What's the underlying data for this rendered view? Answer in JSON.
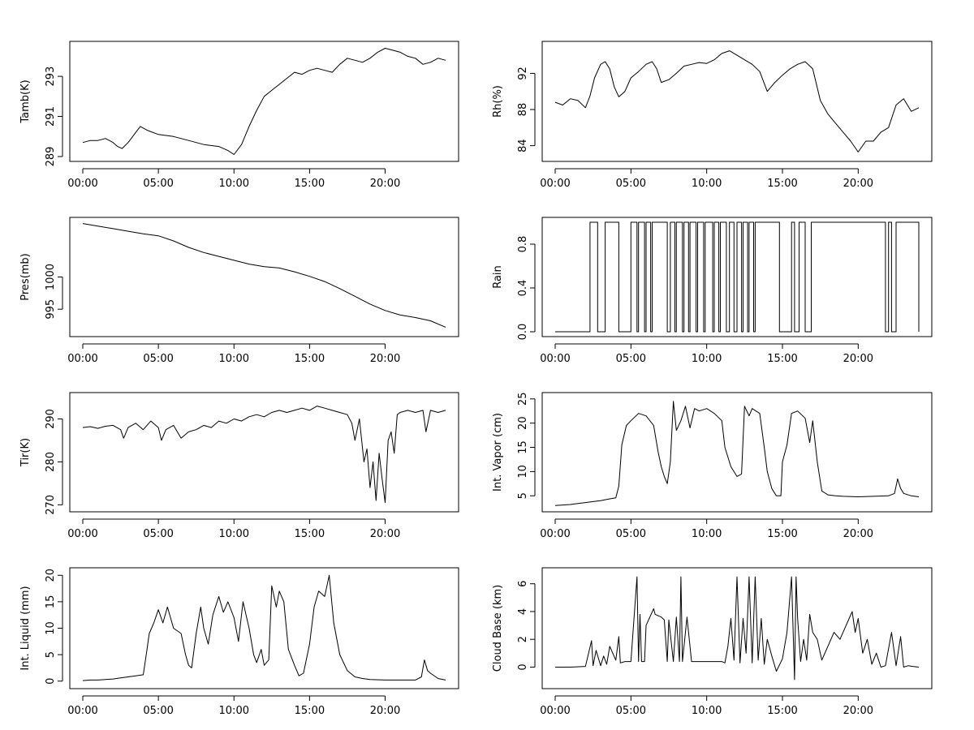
{
  "chart_data": [
    {
      "type": "line",
      "ylabel": "Tamb(K)",
      "xticks": [
        "00:00",
        "05:00",
        "10:00",
        "15:00",
        "20:00"
      ],
      "xlim": [
        0,
        24
      ],
      "ylim": [
        289,
        294.5
      ],
      "yticks": [
        289,
        291,
        293
      ],
      "x": [
        0,
        0.5,
        1,
        1.5,
        2,
        2.3,
        2.6,
        3,
        3.5,
        3.8,
        4.3,
        5,
        6,
        7,
        8,
        9,
        9.6,
        10,
        10.5,
        11,
        11.5,
        12,
        12.5,
        13,
        13.5,
        14,
        14.5,
        15,
        15.5,
        16,
        16.5,
        17,
        17.5,
        18,
        18.5,
        19,
        19.5,
        20,
        20.5,
        21,
        21.5,
        22,
        22.5,
        23,
        23.5,
        24
      ],
      "y": [
        289.7,
        289.8,
        289.8,
        289.9,
        289.7,
        289.5,
        289.4,
        289.7,
        290.2,
        290.5,
        290.3,
        290.1,
        290.0,
        289.8,
        289.6,
        289.5,
        289.3,
        289.1,
        289.6,
        290.5,
        291.3,
        292.0,
        292.3,
        292.6,
        292.9,
        293.2,
        293.1,
        293.3,
        293.4,
        293.3,
        293.2,
        293.6,
        293.9,
        293.8,
        293.7,
        293.9,
        294.2,
        294.4,
        294.3,
        294.2,
        294.0,
        293.9,
        293.6,
        293.7,
        293.9,
        293.8
      ]
    },
    {
      "type": "line",
      "ylabel": "Rh(%)",
      "xticks": [
        "00:00",
        "05:00",
        "10:00",
        "15:00",
        "20:00"
      ],
      "xlim": [
        0,
        24
      ],
      "ylim": [
        82.8,
        95
      ],
      "yticks": [
        84,
        88,
        92
      ],
      "x": [
        0,
        0.5,
        1,
        1.5,
        2,
        2.3,
        2.6,
        3,
        3.3,
        3.6,
        3.9,
        4.2,
        4.6,
        5,
        5.5,
        6,
        6.4,
        6.7,
        7,
        7.5,
        8,
        8.5,
        9,
        9.5,
        10,
        10.5,
        11,
        11.5,
        12,
        12.5,
        13,
        13.5,
        14,
        14.5,
        15,
        15.5,
        16,
        16.5,
        17,
        17.5,
        18,
        18.5,
        19,
        19.5,
        20,
        20.5,
        21,
        21.5,
        22,
        22.5,
        23,
        23.5,
        24
      ],
      "y": [
        88.8,
        88.5,
        89.2,
        89.0,
        88.2,
        89.5,
        91.5,
        93.0,
        93.3,
        92.5,
        90.5,
        89.4,
        90.0,
        91.5,
        92.2,
        93.0,
        93.3,
        92.5,
        91.0,
        91.3,
        92.0,
        92.8,
        93.0,
        93.2,
        93.1,
        93.5,
        94.2,
        94.5,
        94.0,
        93.5,
        93.0,
        92.2,
        90.0,
        91.0,
        91.8,
        92.5,
        93.0,
        93.3,
        92.5,
        89.0,
        87.5,
        86.5,
        85.5,
        84.5,
        83.3,
        84.5,
        84.5,
        85.5,
        86.0,
        88.5,
        89.2,
        87.8,
        88.2
      ]
    },
    {
      "type": "line",
      "ylabel": "Pres(mb)",
      "xticks": [
        "00:00",
        "05:00",
        "10:00",
        "15:00",
        "20:00"
      ],
      "xlim": [
        0,
        24
      ],
      "ylim": [
        991.5,
        1008.5
      ],
      "yticks": [
        995,
        1000
      ],
      "x": [
        0,
        1,
        2,
        3,
        4,
        5,
        6,
        7,
        8,
        9,
        10,
        11,
        12,
        13,
        14,
        15,
        16,
        17,
        18,
        19,
        20,
        21,
        22,
        23,
        24
      ],
      "y": [
        1008.3,
        1007.9,
        1007.5,
        1007.1,
        1006.7,
        1006.4,
        1005.6,
        1004.6,
        1003.8,
        1003.2,
        1002.6,
        1002.0,
        1001.6,
        1001.4,
        1000.8,
        1000.1,
        999.3,
        998.2,
        997.0,
        995.8,
        994.8,
        994.1,
        993.7,
        993.2,
        992.2
      ]
    },
    {
      "type": "line",
      "ylabel": "Rain",
      "xticks": [
        "00:00",
        "05:00",
        "10:00",
        "15:00",
        "20:00"
      ],
      "xlim": [
        0,
        24
      ],
      "ylim": [
        0,
        1
      ],
      "yticks": [
        "0.0",
        "0.4",
        "0.8"
      ],
      "step": true,
      "x": [
        0,
        2.3,
        2.8,
        3.3,
        4.2,
        5.0,
        5.4,
        5.5,
        5.9,
        6.0,
        6.3,
        6.4,
        7.4,
        7.6,
        7.9,
        8.0,
        8.4,
        8.5,
        8.8,
        8.9,
        9.3,
        9.4,
        9.8,
        9.9,
        10.4,
        10.5,
        10.8,
        10.9,
        11.3,
        11.5,
        11.8,
        12.0,
        12.3,
        12.4,
        12.7,
        12.8,
        13.1,
        13.2,
        14.8,
        15.6,
        15.8,
        16.1,
        16.5,
        16.9,
        21.8,
        22.0,
        22.2,
        22.5,
        24
      ],
      "y": [
        0,
        1,
        0,
        1,
        0,
        1,
        0,
        1,
        0,
        1,
        0,
        1,
        0,
        1,
        0,
        1,
        0,
        1,
        0,
        1,
        0,
        1,
        0,
        1,
        0,
        1,
        0,
        1,
        0,
        1,
        0,
        1,
        0,
        1,
        0,
        1,
        0,
        1,
        0,
        1,
        0,
        1,
        0,
        1,
        0,
        1,
        0,
        1,
        0
      ]
    },
    {
      "type": "line",
      "ylabel": "Tir(K)",
      "xticks": [
        "00:00",
        "05:00",
        "10:00",
        "15:00",
        "20:00"
      ],
      "xlim": [
        0,
        24
      ],
      "ylim": [
        269.5,
        295
      ],
      "yticks": [
        270,
        280,
        290
      ],
      "x": [
        0,
        0.5,
        1,
        1.5,
        2,
        2.5,
        2.7,
        3,
        3.5,
        4,
        4.5,
        5,
        5.2,
        5.5,
        6,
        6.5,
        7,
        7.5,
        8,
        8.5,
        9,
        9.5,
        10,
        10.5,
        11,
        11.5,
        12,
        12.5,
        13,
        13.5,
        14,
        14.5,
        15,
        15.5,
        16,
        16.5,
        17,
        17.5,
        17.8,
        18,
        18.3,
        18.6,
        18.8,
        19.0,
        19.2,
        19.4,
        19.6,
        19.8,
        20.0,
        20.2,
        20.4,
        20.6,
        20.8,
        21,
        21.5,
        22,
        22.5,
        22.7,
        23,
        23.5,
        24
      ],
      "y": [
        288.0,
        288.2,
        287.8,
        288.3,
        288.5,
        287.5,
        285.5,
        288.0,
        289.0,
        287.5,
        289.5,
        288.0,
        285.0,
        287.5,
        288.5,
        285.5,
        287.0,
        287.5,
        288.5,
        288.0,
        289.5,
        289.0,
        290.0,
        289.5,
        290.5,
        291.0,
        290.5,
        291.5,
        292.0,
        291.5,
        292.0,
        292.5,
        292.0,
        293.0,
        292.5,
        292.0,
        291.5,
        291.0,
        289.0,
        285.0,
        290.0,
        280.0,
        283.0,
        274.0,
        280.0,
        271.0,
        282.0,
        276.0,
        270.5,
        285.0,
        287.0,
        282.0,
        291.0,
        291.5,
        292.0,
        291.5,
        292.0,
        287.0,
        292.0,
        291.5,
        292.0
      ]
    },
    {
      "type": "line",
      "ylabel": "Int. Vapor (cm)",
      "xticks": [
        "00:00",
        "05:00",
        "10:00",
        "15:00",
        "20:00"
      ],
      "xlim": [
        0,
        24
      ],
      "ylim": [
        2.7,
        25.3
      ],
      "yticks": [
        5,
        10,
        15,
        20,
        25
      ],
      "x": [
        0,
        0.5,
        1,
        1.5,
        2,
        2.5,
        3,
        3.5,
        4,
        4.2,
        4.4,
        4.7,
        5,
        5.5,
        6,
        6.5,
        6.8,
        7.0,
        7.2,
        7.4,
        7.6,
        7.8,
        8.0,
        8.3,
        8.6,
        8.9,
        9.2,
        9.5,
        10,
        10.5,
        11,
        11.2,
        11.4,
        11.6,
        12,
        12.3,
        12.5,
        12.8,
        13,
        13.5,
        13.8,
        14,
        14.3,
        14.6,
        14.9,
        15.0,
        15.3,
        15.6,
        16,
        16.5,
        16.8,
        17.0,
        17.3,
        17.6,
        18,
        18.5,
        19,
        20,
        21,
        22,
        22.4,
        22.6,
        22.8,
        23,
        23.5,
        24
      ],
      "y": [
        3.0,
        3.1,
        3.2,
        3.4,
        3.6,
        3.8,
        4.0,
        4.3,
        4.6,
        7.0,
        15.5,
        19.5,
        20.5,
        22.0,
        21.5,
        19.5,
        14.0,
        11.0,
        9.0,
        7.5,
        12.0,
        24.5,
        18.5,
        20.5,
        23.5,
        19.0,
        23.0,
        22.5,
        23.0,
        22.0,
        20.5,
        15.0,
        13.0,
        11.0,
        9.0,
        9.5,
        23.5,
        21.5,
        23.0,
        22.0,
        15.0,
        10.0,
        6.5,
        5.0,
        5.0,
        12.0,
        15.5,
        22.0,
        22.5,
        21.0,
        16.0,
        20.5,
        12.0,
        6.0,
        5.2,
        5.0,
        4.9,
        4.8,
        4.9,
        5.0,
        5.5,
        8.5,
        6.5,
        5.5,
        5.0,
        4.8
      ]
    },
    {
      "type": "line",
      "ylabel": "Int. Liquid (mm)",
      "xticks": [
        "00:00",
        "05:00",
        "10:00",
        "15:00",
        "20:00"
      ],
      "xlim": [
        0,
        24
      ],
      "ylim": [
        -0.5,
        20.5
      ],
      "yticks": [
        0,
        5,
        10,
        15,
        20
      ],
      "x": [
        0,
        0.5,
        1,
        1.5,
        2,
        2.5,
        3,
        3.5,
        4,
        4.2,
        4.4,
        4.7,
        5,
        5.3,
        5.6,
        6,
        6.5,
        6.8,
        7,
        7.2,
        7.5,
        7.8,
        8.0,
        8.3,
        8.6,
        9,
        9.3,
        9.6,
        10,
        10.3,
        10.6,
        11,
        11.3,
        11.5,
        11.8,
        12,
        12.3,
        12.5,
        12.8,
        13,
        13.3,
        13.6,
        14,
        14.3,
        14.6,
        15,
        15.3,
        15.6,
        16,
        16.3,
        16.6,
        17,
        17.5,
        18,
        18.5,
        19,
        20,
        21,
        22,
        22.4,
        22.6,
        22.8,
        23,
        23.5,
        24
      ],
      "y": [
        0.1,
        0.2,
        0.2,
        0.3,
        0.4,
        0.6,
        0.8,
        1.0,
        1.2,
        5.0,
        9.0,
        11.0,
        13.5,
        11.0,
        14.0,
        10.0,
        9.0,
        5.0,
        3.0,
        2.5,
        9.0,
        14.0,
        10.0,
        7.0,
        12.5,
        16.0,
        13.0,
        15.0,
        12.0,
        7.5,
        15.0,
        10.0,
        5.0,
        3.5,
        6.0,
        3.0,
        4.0,
        18.0,
        14.0,
        17.0,
        15.0,
        6.0,
        3.0,
        1.0,
        1.5,
        7.0,
        14.0,
        17.0,
        16.0,
        20.0,
        11.0,
        5.0,
        2.0,
        0.8,
        0.5,
        0.3,
        0.2,
        0.2,
        0.2,
        0.8,
        4.0,
        2.0,
        1.5,
        0.5,
        0.2
      ]
    },
    {
      "type": "line",
      "ylabel": "Cloud Base (km)",
      "xticks": [
        "00:00",
        "05:00",
        "10:00",
        "15:00",
        "20:00"
      ],
      "xlim": [
        0,
        24
      ],
      "ylim": [
        -1.2,
        6.8
      ],
      "yticks": [
        0,
        2,
        4,
        6
      ],
      "x": [
        0,
        1,
        2,
        2.4,
        2.5,
        2.7,
        3,
        3.2,
        3.4,
        3.6,
        4.0,
        4.2,
        4.3,
        4.6,
        5.0,
        5.4,
        5.5,
        5.6,
        5.7,
        5.9,
        6,
        6.5,
        6.6,
        7,
        7.2,
        7.4,
        7.5,
        7.8,
        8,
        8.2,
        8.3,
        8.4,
        8.7,
        9,
        10,
        11,
        11.2,
        11.4,
        11.6,
        11.8,
        12,
        12.2,
        12.4,
        12.6,
        12.8,
        13,
        13.2,
        13.4,
        13.6,
        13.8,
        14,
        14.3,
        14.6,
        15,
        15.3,
        15.6,
        15.8,
        15.9,
        16,
        16.2,
        16.4,
        16.6,
        16.8,
        17,
        17.3,
        17.6,
        18,
        18.4,
        18.8,
        19.2,
        19.6,
        19.8,
        20,
        20.3,
        20.6,
        20.9,
        21.2,
        21.5,
        21.8,
        22.2,
        22.5,
        22.8,
        23,
        23.3,
        23.6,
        24
      ],
      "y": [
        0.0,
        0.0,
        0.05,
        1.9,
        0.1,
        1.2,
        0.1,
        0.8,
        0.2,
        1.5,
        0.5,
        2.2,
        0.3,
        0.4,
        0.4,
        6.5,
        0.4,
        3.8,
        0.4,
        0.4,
        3.0,
        4.2,
        3.8,
        3.6,
        3.4,
        0.4,
        3.4,
        0.4,
        3.6,
        0.4,
        6.5,
        0.4,
        3.6,
        0.4,
        0.4,
        0.4,
        0.3,
        1.5,
        3.5,
        0.5,
        6.5,
        0.3,
        3.5,
        1.0,
        6.5,
        0.3,
        6.5,
        0.5,
        3.5,
        0.2,
        2.0,
        0.8,
        -0.3,
        0.6,
        2.5,
        6.5,
        -0.9,
        6.5,
        3.5,
        0.4,
        2.0,
        0.5,
        3.8,
        2.5,
        2.0,
        0.5,
        1.5,
        2.5,
        2.0,
        3.0,
        4.0,
        2.5,
        3.5,
        1.0,
        2.0,
        0.2,
        1.0,
        0.0,
        0.1,
        2.5,
        0.1,
        2.2,
        0.0,
        0.1,
        0.05,
        0.0
      ]
    }
  ]
}
